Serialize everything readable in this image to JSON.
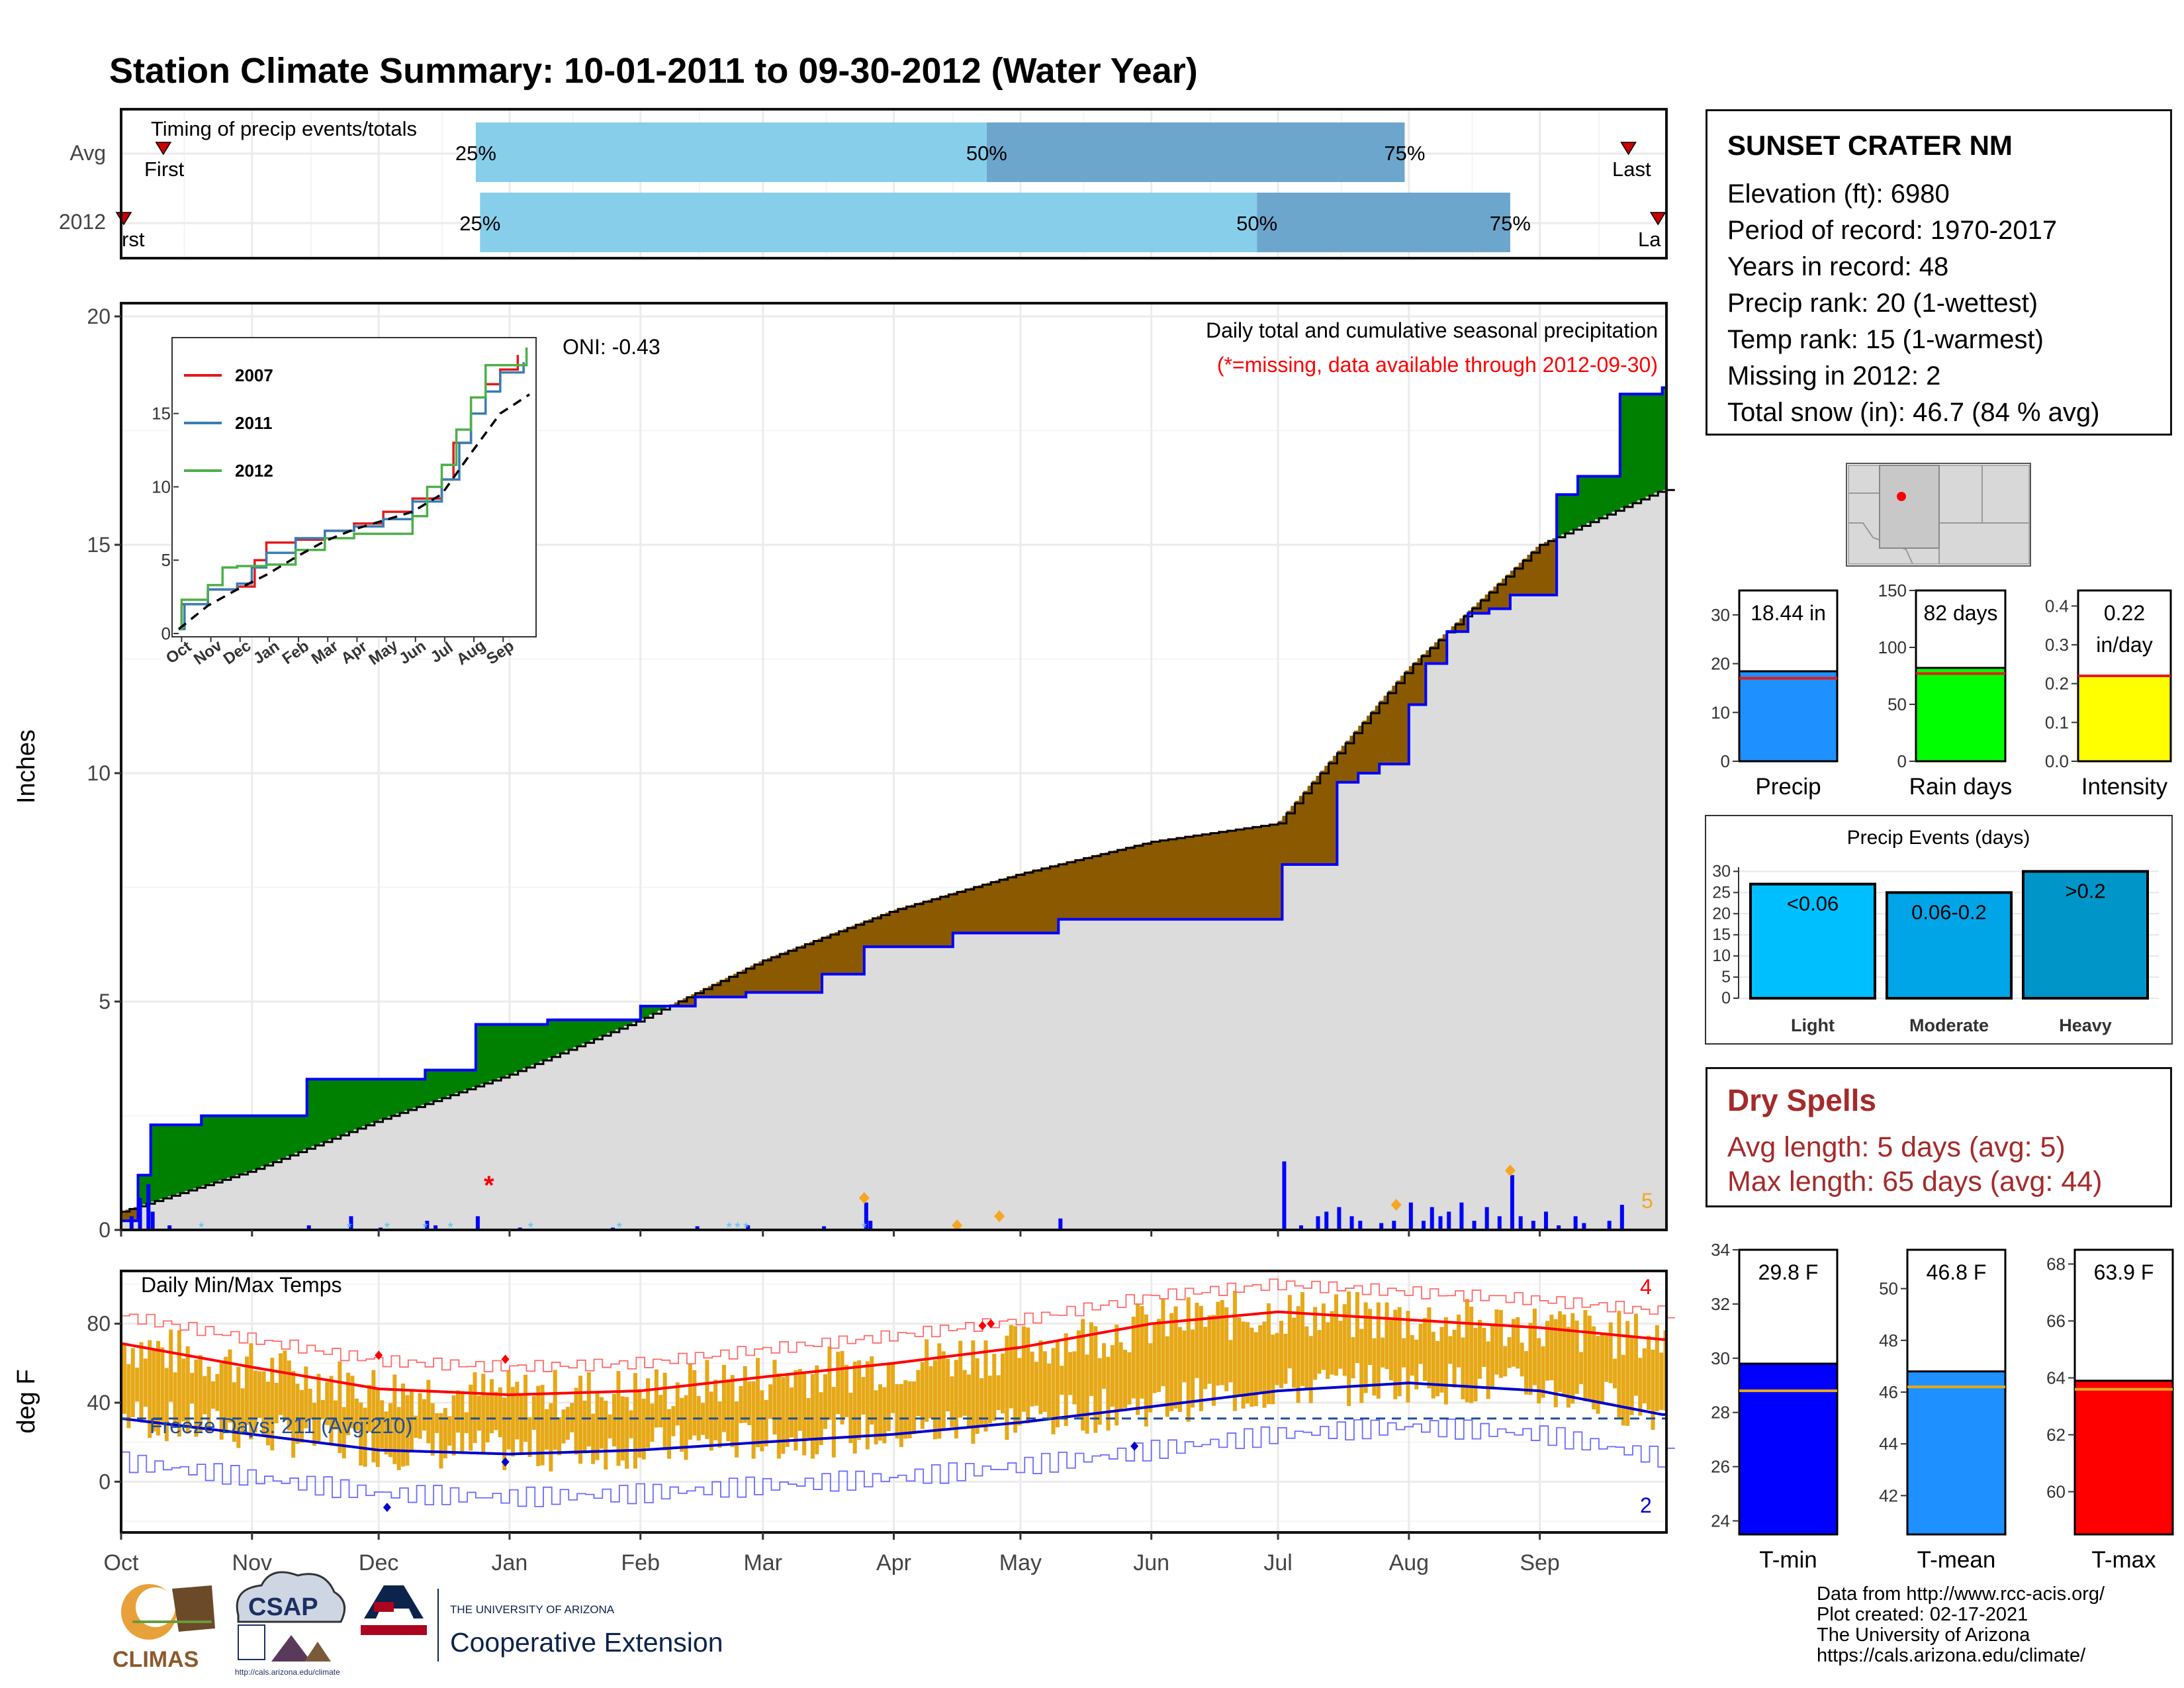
{
  "title": "Station Climate Summary: 10-01-2011 to 09-30-2012 (Water Year)",
  "colors": {
    "title": "#8b2500",
    "light_blue": "#87ceeb",
    "mid_blue": "#6ca6cd",
    "green": "#008000",
    "brown": "#8b5a00",
    "gray_fill": "#dcdcdc",
    "blue": "#0000ff",
    "gold": "#e6a817",
    "red": "#ff0000",
    "dry_spell_text": "#a52a2a"
  },
  "timing_panel": {
    "label": "Timing of precip events/totals",
    "rows": [
      "Avg",
      "2012"
    ],
    "first_label": "First",
    "last_label": "Last",
    "pct_labels": [
      "25%",
      "50%",
      "75%"
    ],
    "avg": {
      "p25": "2011-12-24",
      "p50": "2012-04-23",
      "p75": "2012-07-31",
      "first": "2011-10-11",
      "last": "2012-09-22"
    },
    "y2012": {
      "p25": "2011-12-25",
      "p50": "2012-06-26",
      "p75": "2012-08-25",
      "first": "2011-10-01",
      "last": "2012-09-29"
    }
  },
  "station": {
    "name": "SUNSET CRATER NM",
    "lines": [
      "Elevation (ft): 6980",
      "Period of record: 1970-2017",
      "Years in record: 48",
      "Precip rank: 20 (1-wettest)",
      "Temp rank: 15 (1-warmest)",
      "Missing in 2012: 2",
      "Total snow (in): 46.7 (84 % avg)"
    ]
  },
  "precip_panel": {
    "ylabel": "Inches",
    "annotation_title": "Daily total and cumulative seasonal precipitation",
    "annotation_missing": "(*=missing, data available through 2012-09-30)",
    "oni": "ONI: -0.43",
    "count_label": "5",
    "yticks": [
      "0",
      "5",
      "10",
      "15",
      "20"
    ]
  },
  "inset": {
    "legend": [
      "2007",
      "2011",
      "2012"
    ],
    "legend_colors": [
      "#e41a1c",
      "#377eb8",
      "#4daf4a"
    ],
    "yticks": [
      "0",
      "5",
      "10",
      "15"
    ],
    "xticks": [
      "Oct",
      "Nov",
      "Dec",
      "Jan",
      "Feb",
      "Mar",
      "Apr",
      "May",
      "Jun",
      "Jul",
      "Aug",
      "Sep"
    ]
  },
  "temp_panel": {
    "ylabel": "deg F",
    "label": "Daily Min/Max Temps",
    "freeze_label": "Freeze Days: 211 (Avg:210)",
    "record_high_count": "4",
    "record_low_count": "2",
    "yticks": [
      "0",
      "40",
      "80"
    ]
  },
  "months": [
    "Oct",
    "Nov",
    "Dec",
    "Jan",
    "Feb",
    "Mar",
    "Apr",
    "May",
    "Jun",
    "Jul",
    "Aug",
    "Sep"
  ],
  "summary_bars": {
    "precip": {
      "label": "Precip",
      "text": "18.44 in",
      "value": 18.44,
      "avg": 17.0,
      "ymax": 35,
      "yticks": [
        "0",
        "10",
        "20",
        "30"
      ],
      "color": "#1e90ff"
    },
    "rain_days": {
      "label": "Rain days",
      "text": "82 days",
      "value": 82,
      "avg": 77,
      "ymax": 150,
      "yticks": [
        "0",
        "50",
        "100",
        "150"
      ],
      "color": "#00ff00"
    },
    "intensity": {
      "label": "Intensity",
      "text1": "0.22",
      "text2": "in/day",
      "value": 0.22,
      "avg": 0.22,
      "ymax": 0.44,
      "yticks": [
        "0.0",
        "0.1",
        "0.2",
        "0.3",
        "0.4"
      ],
      "color": "#ffff00"
    }
  },
  "precip_events": {
    "title": "Precip Events (days)",
    "yticks": [
      "0",
      "5",
      "10",
      "15",
      "20",
      "25",
      "30"
    ],
    "bars": [
      {
        "label": "Light",
        "text": "<0.06",
        "value": 27,
        "color": "#00bfff"
      },
      {
        "label": "Moderate",
        "text": "0.06-0.2",
        "value": 25,
        "color": "#00a5e8"
      },
      {
        "label": "Heavy",
        "text": ">0.2",
        "value": 30,
        "color": "#0095c8"
      }
    ]
  },
  "dry_spells": {
    "title": "Dry Spells",
    "avg_length": "Avg length: 5 days (avg: 5)",
    "max_length": "Max length: 65 days (avg: 44)"
  },
  "temp_bars": {
    "tmin": {
      "label": "T-min",
      "text": "29.8 F",
      "value": 29.8,
      "avg": 28.8,
      "ymin": 23.5,
      "ymax": 34.0,
      "yticks": [
        "24",
        "26",
        "28",
        "30",
        "32",
        "34"
      ],
      "color": "#0000ff"
    },
    "tmean": {
      "label": "T-mean",
      "text": "46.8 F",
      "value": 46.8,
      "avg": 46.2,
      "ymin": 40.5,
      "ymax": 51.5,
      "yticks": [
        "42",
        "44",
        "46",
        "48",
        "50"
      ],
      "color": "#1e90ff"
    },
    "tmax": {
      "label": "T-max",
      "text": "63.9 F",
      "value": 63.9,
      "avg": 63.6,
      "ymin": 58.5,
      "ymax": 68.5,
      "yticks": [
        "60",
        "62",
        "64",
        "66",
        "68"
      ],
      "color": "#ff0000"
    }
  },
  "logos": {
    "climas": "CLIMAS",
    "csap": "CSAP",
    "csap_url": "http://cals.arizona.edu/climate",
    "ua_small": "THE UNIVERSITY OF ARIZONA",
    "ua_big": "Cooperative Extension"
  },
  "credits": [
    "Data from http://www.rcc-acis.org/",
    "Plot created: 02-17-2021",
    "The University of Arizona",
    "https://cals.arizona.edu/climate/"
  ],
  "chart_data": [
    {
      "type": "area",
      "title": "Daily total and cumulative seasonal precipitation",
      "ylabel": "Inches",
      "ylim": [
        0,
        20
      ],
      "series": [
        {
          "name": "2012",
          "x": [
            "2011-10-01",
            "2011-10-05",
            "2011-10-08",
            "2011-10-20",
            "2011-11-01",
            "2011-11-14",
            "2011-11-24",
            "2011-12-12",
            "2011-12-24",
            "2012-01-03",
            "2012-01-10",
            "2012-01-25",
            "2012-02-01",
            "2012-02-14",
            "2012-02-26",
            "2012-03-15",
            "2012-03-25",
            "2012-04-15",
            "2012-05-10",
            "2012-06-01",
            "2012-06-20",
            "2012-06-30",
            "2012-07-02",
            "2012-07-10",
            "2012-07-15",
            "2012-07-20",
            "2012-07-25",
            "2012-08-01",
            "2012-08-05",
            "2012-08-10",
            "2012-08-15",
            "2012-08-20",
            "2012-08-25",
            "2012-09-05",
            "2012-09-10",
            "2012-09-20",
            "2012-09-30"
          ],
          "values": [
            0.2,
            1.2,
            2.3,
            2.5,
            2.5,
            3.3,
            3.3,
            3.5,
            4.5,
            4.5,
            4.6,
            4.6,
            4.9,
            5.1,
            5.2,
            5.6,
            6.2,
            6.5,
            6.8,
            6.8,
            6.8,
            6.8,
            8.0,
            8.0,
            9.8,
            10.0,
            10.2,
            11.5,
            12.4,
            13.1,
            13.5,
            13.6,
            13.9,
            16.1,
            16.5,
            18.3,
            18.44
          ]
        },
        {
          "name": "Average",
          "x": [
            "2011-10-01",
            "2011-11-01",
            "2011-12-01",
            "2012-01-01",
            "2012-02-01",
            "2012-03-01",
            "2012-04-01",
            "2012-05-01",
            "2012-06-01",
            "2012-07-01",
            "2012-08-01",
            "2012-09-01",
            "2012-09-30"
          ],
          "values": [
            0.4,
            1.3,
            2.4,
            3.4,
            4.6,
            5.9,
            7.0,
            7.8,
            8.5,
            8.9,
            12.3,
            15.0,
            16.2
          ]
        }
      ]
    },
    {
      "type": "line",
      "ylabel": "deg F",
      "ylim": [
        -20,
        100
      ],
      "series": [
        {
          "name": "Avg max",
          "x": [
            "2011-10-01",
            "2011-11-01",
            "2011-12-01",
            "2012-01-01",
            "2012-02-01",
            "2012-03-01",
            "2012-04-01",
            "2012-05-01",
            "2012-06-01",
            "2012-07-01",
            "2012-08-01",
            "2012-09-01",
            "2012-09-30"
          ],
          "values": [
            70,
            58,
            47,
            44,
            46,
            53,
            60,
            68,
            80,
            86,
            82,
            78,
            72
          ]
        },
        {
          "name": "Avg min",
          "x": [
            "2011-10-01",
            "2011-11-01",
            "2011-12-01",
            "2012-01-01",
            "2012-02-01",
            "2012-03-01",
            "2012-04-01",
            "2012-05-01",
            "2012-06-01",
            "2012-07-01",
            "2012-08-01",
            "2012-09-01",
            "2012-09-30"
          ],
          "values": [
            32,
            24,
            16,
            14,
            16,
            20,
            24,
            30,
            38,
            46,
            50,
            46,
            34
          ]
        }
      ]
    }
  ]
}
